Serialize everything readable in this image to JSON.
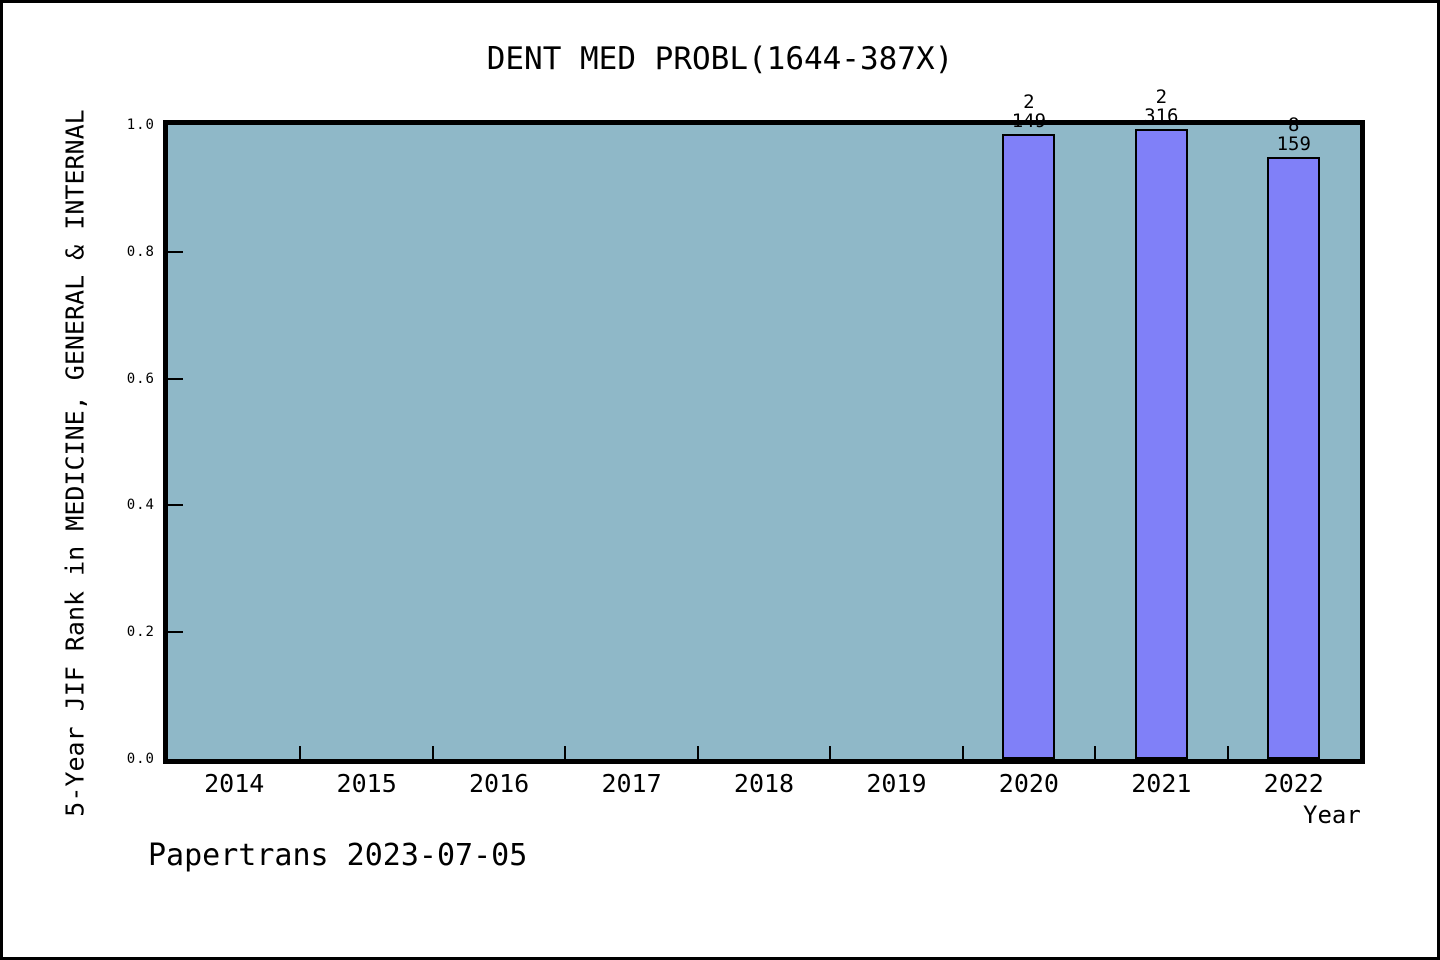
{
  "watermark": {
    "text": "Papertrans 2023-07-05"
  },
  "chart_data": {
    "type": "bar",
    "title": "DENT MED PROBL(1644-387X)",
    "xlabel": "Year",
    "ylabel": "5-Year JIF Rank in MEDICINE, GENERAL & INTERNAL",
    "categories": [
      "2014",
      "2015",
      "2016",
      "2017",
      "2018",
      "2019",
      "2020",
      "2021",
      "2022"
    ],
    "values": [
      null,
      null,
      null,
      null,
      null,
      null,
      0.9866,
      0.9937,
      0.9497
    ],
    "bar_labels": [
      null,
      null,
      null,
      null,
      null,
      null,
      {
        "numerator": "2",
        "denominator": "149"
      },
      {
        "numerator": "2",
        "denominator": "316"
      },
      {
        "numerator": "8",
        "denominator": "159"
      }
    ],
    "ylim": [
      0.0,
      1.0
    ],
    "yticks": [
      0.0,
      0.2,
      0.4,
      0.6,
      0.8,
      1.0
    ],
    "grid": false,
    "legend": null,
    "colors": {
      "plot_background": "#8fb8c8",
      "bar_fill": "#8080f8",
      "bar_border": "#000000",
      "frame": "#000000",
      "text": "#000000"
    }
  }
}
